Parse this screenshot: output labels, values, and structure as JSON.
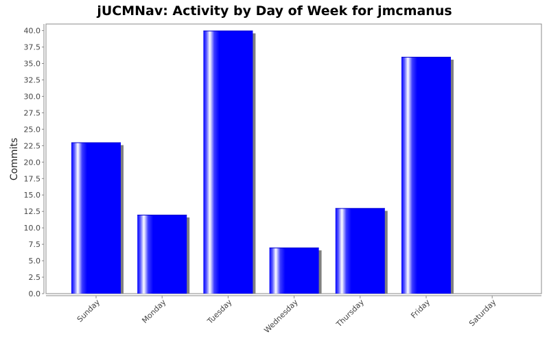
{
  "chart_data": {
    "type": "bar",
    "title": "jUCMNav: Activity by Day of Week for jmcmanus",
    "xlabel": "",
    "ylabel": "Commits",
    "categories": [
      "Sunday",
      "Monday",
      "Tuesday",
      "Wednesday",
      "Thursday",
      "Friday",
      "Saturday"
    ],
    "values": [
      23,
      12,
      40,
      7,
      13,
      36,
      0
    ],
    "ylim": [
      0,
      41
    ],
    "yticks": [
      "0.0",
      "2.5",
      "5.0",
      "7.5",
      "10.0",
      "12.5",
      "15.0",
      "17.5",
      "20.0",
      "22.5",
      "25.0",
      "27.5",
      "30.0",
      "32.5",
      "35.0",
      "37.5",
      "40.0"
    ],
    "grid": false,
    "legend": "none",
    "colors": {
      "bar": "#0000ff",
      "bar_highlight": "#ffffff",
      "shadow": "#808080",
      "plot_border": "#888888"
    }
  }
}
